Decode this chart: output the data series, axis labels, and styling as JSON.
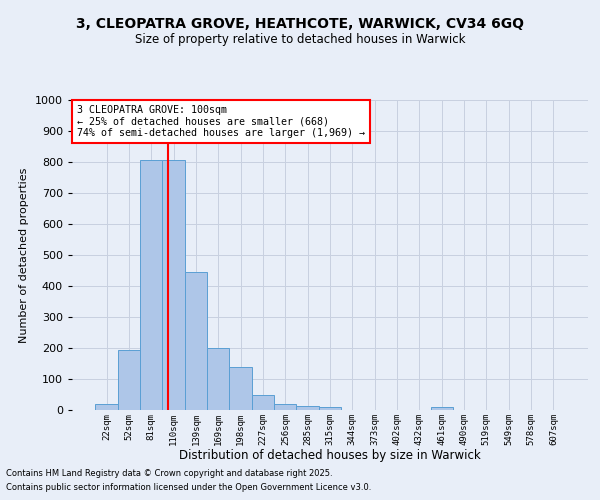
{
  "title_line1": "3, CLEOPATRA GROVE, HEATHCOTE, WARWICK, CV34 6GQ",
  "title_line2": "Size of property relative to detached houses in Warwick",
  "xlabel": "Distribution of detached houses by size in Warwick",
  "ylabel": "Number of detached properties",
  "footer_line1": "Contains HM Land Registry data © Crown copyright and database right 2025.",
  "footer_line2": "Contains public sector information licensed under the Open Government Licence v3.0.",
  "bar_labels": [
    "22sqm",
    "52sqm",
    "81sqm",
    "110sqm",
    "139sqm",
    "169sqm",
    "198sqm",
    "227sqm",
    "256sqm",
    "285sqm",
    "315sqm",
    "344sqm",
    "373sqm",
    "402sqm",
    "432sqm",
    "461sqm",
    "490sqm",
    "519sqm",
    "549sqm",
    "578sqm",
    "607sqm"
  ],
  "bar_values": [
    20,
    195,
    805,
    805,
    445,
    200,
    140,
    50,
    18,
    12,
    10,
    0,
    0,
    0,
    0,
    10,
    0,
    0,
    0,
    0,
    0
  ],
  "bar_color": "#aec6e8",
  "bar_edge_color": "#5a9fd4",
  "vline_x": 2.75,
  "vline_color": "red",
  "annotation_box_text": "3 CLEOPATRA GROVE: 100sqm\n← 25% of detached houses are smaller (668)\n74% of semi-detached houses are larger (1,969) →",
  "annotation_box_facecolor": "white",
  "annotation_box_edgecolor": "red",
  "grid_color": "#c8d0e0",
  "background_color": "#e8eef8",
  "ylim": [
    0,
    1000
  ],
  "yticks": [
    0,
    100,
    200,
    300,
    400,
    500,
    600,
    700,
    800,
    900,
    1000
  ]
}
